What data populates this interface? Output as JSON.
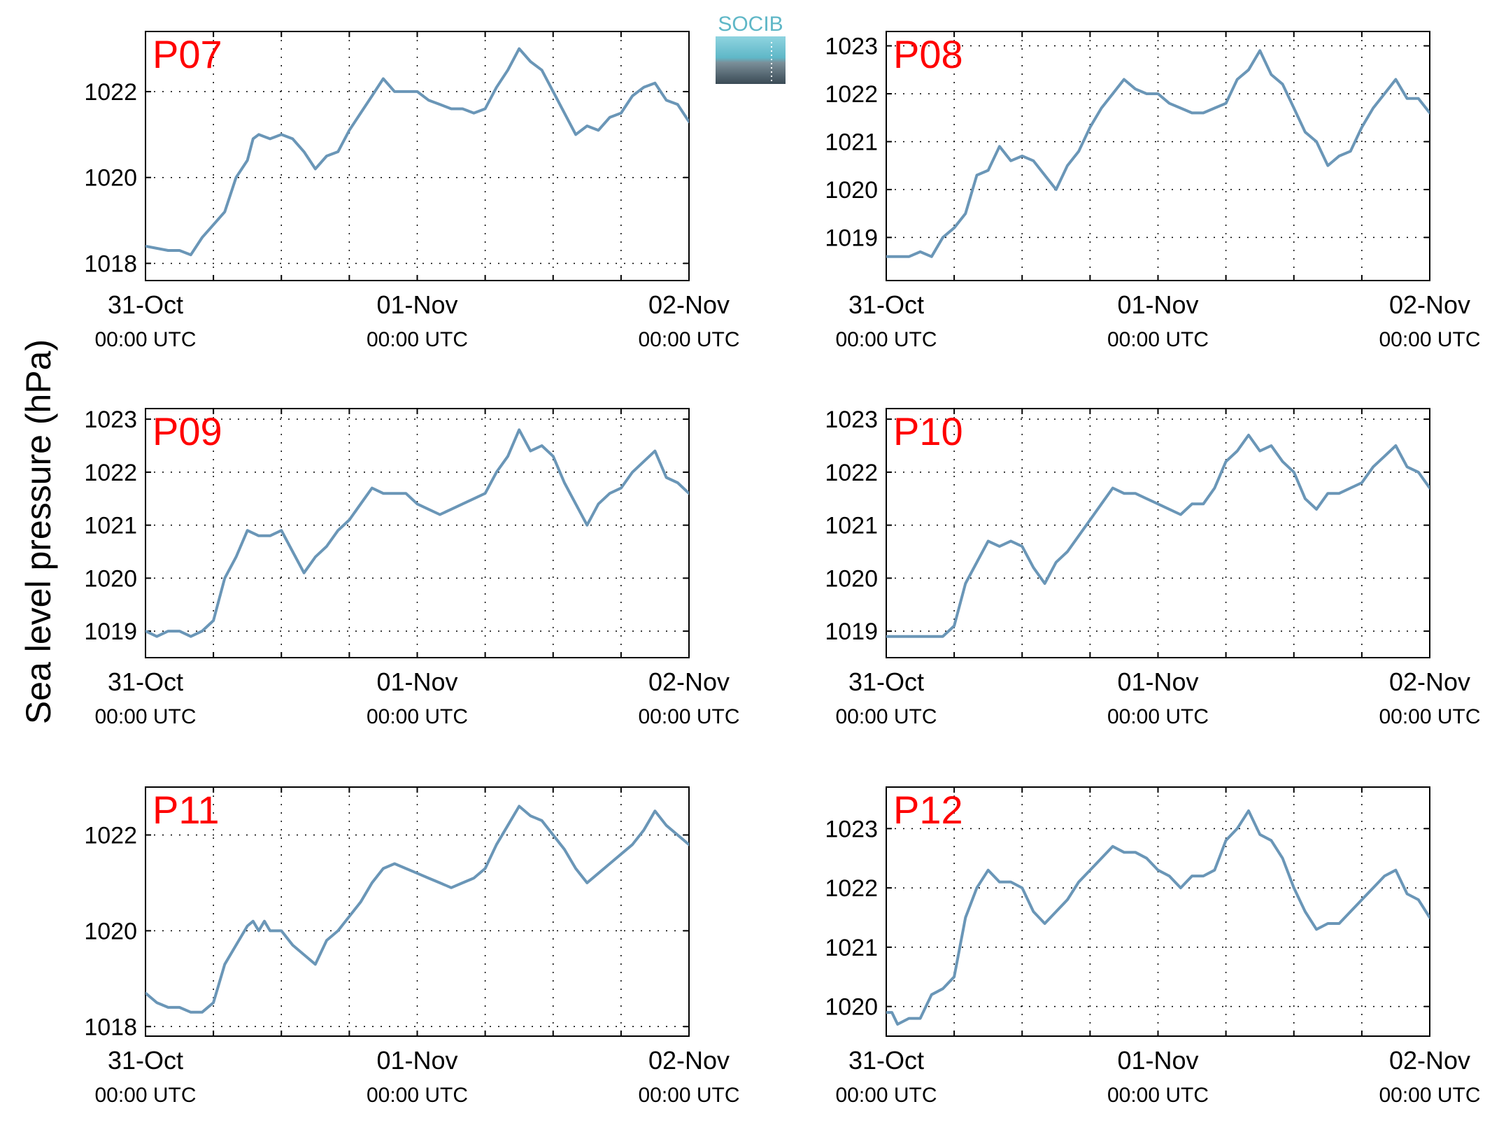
{
  "figure": {
    "ylabel": "Sea level pressure (hPa)",
    "logo_text": "SOCIB",
    "line_color": "#6a96b7",
    "station_label_color": "#ff0000",
    "time_unit_label": "00:00 UTC"
  },
  "chart_data": [
    {
      "type": "line",
      "station": "P07",
      "xlabels": [
        "31-Oct",
        "01-Nov",
        "02-Nov"
      ],
      "xsub": [
        "00:00 UTC",
        "00:00 UTC",
        "00:00 UTC"
      ],
      "x_hours": [
        0,
        24,
        48
      ],
      "xlim": [
        0,
        48
      ],
      "grid_hours": [
        6,
        12,
        18,
        24,
        30,
        36,
        42
      ],
      "ylim": [
        1017.6,
        1023.4
      ],
      "yticks": [
        1018,
        1020,
        1022
      ],
      "ytick_labels": [
        "1018",
        "1020",
        "1022"
      ],
      "grid": true,
      "series": [
        {
          "x": [
            0,
            2,
            3,
            4,
            5,
            6,
            7,
            8,
            9,
            9.5,
            10,
            11,
            12,
            13,
            14,
            15,
            16,
            17,
            18,
            19,
            20,
            21,
            22,
            23,
            24,
            25,
            26,
            27,
            28,
            29,
            30,
            31,
            32,
            33,
            34,
            35,
            36,
            37,
            38,
            39,
            40,
            41,
            42,
            43,
            44,
            45,
            46,
            47,
            48
          ],
          "y": [
            1018.4,
            1018.3,
            1018.3,
            1018.2,
            1018.6,
            1018.9,
            1019.2,
            1020.0,
            1020.4,
            1020.9,
            1021.0,
            1020.9,
            1021.0,
            1020.9,
            1020.6,
            1020.2,
            1020.5,
            1020.6,
            1021.1,
            1021.5,
            1021.9,
            1022.3,
            1022.0,
            1022.0,
            1022.0,
            1021.8,
            1021.7,
            1021.6,
            1021.6,
            1021.5,
            1021.6,
            1022.1,
            1022.5,
            1023.0,
            1022.7,
            1022.5,
            1022.0,
            1021.5,
            1021.0,
            1021.2,
            1021.1,
            1021.4,
            1021.5,
            1021.9,
            1022.1,
            1022.2,
            1021.8,
            1021.7,
            1021.3
          ]
        }
      ]
    },
    {
      "type": "line",
      "station": "P08",
      "xlabels": [
        "31-Oct",
        "01-Nov",
        "02-Nov"
      ],
      "xsub": [
        "00:00 UTC",
        "00:00 UTC",
        "00:00 UTC"
      ],
      "x_hours": [
        0,
        24,
        48
      ],
      "xlim": [
        0,
        48
      ],
      "grid_hours": [
        6,
        12,
        18,
        24,
        30,
        36,
        42
      ],
      "ylim": [
        1018.1,
        1023.3
      ],
      "yticks": [
        1019,
        1020,
        1021,
        1022,
        1023
      ],
      "ytick_labels": [
        "1019",
        "1020",
        "1021",
        "1022",
        "1023"
      ],
      "grid": true,
      "series": [
        {
          "x": [
            0,
            1,
            2,
            3,
            4,
            5,
            6,
            7,
            8,
            9,
            10,
            11,
            12,
            13,
            14,
            15,
            16,
            17,
            18,
            19,
            20,
            21,
            22,
            23,
            24,
            25,
            26,
            27,
            28,
            29,
            30,
            31,
            32,
            33,
            34,
            35,
            36,
            37,
            38,
            39,
            40,
            41,
            42,
            43,
            44,
            45,
            46,
            47,
            48
          ],
          "y": [
            1018.6,
            1018.6,
            1018.6,
            1018.7,
            1018.6,
            1019.0,
            1019.2,
            1019.5,
            1020.3,
            1020.4,
            1020.9,
            1020.6,
            1020.7,
            1020.6,
            1020.3,
            1020.0,
            1020.5,
            1020.8,
            1021.3,
            1021.7,
            1022.0,
            1022.3,
            1022.1,
            1022.0,
            1022.0,
            1021.8,
            1021.7,
            1021.6,
            1021.6,
            1021.7,
            1021.8,
            1022.3,
            1022.5,
            1022.9,
            1022.4,
            1022.2,
            1021.7,
            1021.2,
            1021.0,
            1020.5,
            1020.7,
            1020.8,
            1021.3,
            1021.7,
            1022.0,
            1022.3,
            1021.9,
            1021.9,
            1021.6
          ]
        }
      ]
    },
    {
      "type": "line",
      "station": "P09",
      "xlabels": [
        "31-Oct",
        "01-Nov",
        "02-Nov"
      ],
      "xsub": [
        "00:00 UTC",
        "00:00 UTC",
        "00:00 UTC"
      ],
      "x_hours": [
        0,
        24,
        48
      ],
      "xlim": [
        0,
        48
      ],
      "grid_hours": [
        6,
        12,
        18,
        24,
        30,
        36,
        42
      ],
      "ylim": [
        1018.5,
        1023.2
      ],
      "yticks": [
        1019,
        1020,
        1021,
        1022,
        1023
      ],
      "ytick_labels": [
        "1019",
        "1020",
        "1021",
        "1022",
        "1023"
      ],
      "grid": true,
      "series": [
        {
          "x": [
            0,
            1,
            2,
            3,
            4,
            5,
            6,
            7,
            8,
            9,
            10,
            11,
            12,
            13,
            14,
            15,
            16,
            17,
            18,
            19,
            20,
            21,
            22,
            23,
            24,
            25,
            26,
            27,
            28,
            29,
            30,
            31,
            32,
            33,
            34,
            35,
            36,
            37,
            38,
            39,
            40,
            41,
            42,
            43,
            44,
            45,
            46,
            47,
            48
          ],
          "y": [
            1019.0,
            1018.9,
            1019.0,
            1019.0,
            1018.9,
            1019.0,
            1019.2,
            1020.0,
            1020.4,
            1020.9,
            1020.8,
            1020.8,
            1020.9,
            1020.5,
            1020.1,
            1020.4,
            1020.6,
            1020.9,
            1021.1,
            1021.4,
            1021.7,
            1021.6,
            1021.6,
            1021.6,
            1021.4,
            1021.3,
            1021.2,
            1021.3,
            1021.4,
            1021.5,
            1021.6,
            1022.0,
            1022.3,
            1022.8,
            1022.4,
            1022.5,
            1022.3,
            1021.8,
            1021.4,
            1021.0,
            1021.4,
            1021.6,
            1021.7,
            1022.0,
            1022.2,
            1022.4,
            1021.9,
            1021.8,
            1021.6
          ]
        }
      ]
    },
    {
      "type": "line",
      "station": "P10",
      "xlabels": [
        "31-Oct",
        "01-Nov",
        "02-Nov"
      ],
      "xsub": [
        "00:00 UTC",
        "00:00 UTC",
        "00:00 UTC"
      ],
      "x_hours": [
        0,
        24,
        48
      ],
      "xlim": [
        0,
        48
      ],
      "grid_hours": [
        6,
        12,
        18,
        24,
        30,
        36,
        42
      ],
      "ylim": [
        1018.5,
        1023.2
      ],
      "yticks": [
        1019,
        1020,
        1021,
        1022,
        1023
      ],
      "ytick_labels": [
        "1019",
        "1020",
        "1021",
        "1022",
        "1023"
      ],
      "grid": true,
      "series": [
        {
          "x": [
            0,
            1,
            2,
            3,
            4,
            5,
            6,
            7,
            8,
            9,
            10,
            11,
            12,
            13,
            14,
            15,
            16,
            17,
            18,
            19,
            20,
            21,
            22,
            23,
            24,
            25,
            26,
            27,
            28,
            29,
            30,
            31,
            32,
            33,
            34,
            35,
            36,
            37,
            38,
            39,
            40,
            41,
            42,
            43,
            44,
            45,
            46,
            47,
            48
          ],
          "y": [
            1018.9,
            1018.9,
            1018.9,
            1018.9,
            1018.9,
            1018.9,
            1019.1,
            1019.9,
            1020.3,
            1020.7,
            1020.6,
            1020.7,
            1020.6,
            1020.2,
            1019.9,
            1020.3,
            1020.5,
            1020.8,
            1021.1,
            1021.4,
            1021.7,
            1021.6,
            1021.6,
            1021.5,
            1021.4,
            1021.3,
            1021.2,
            1021.4,
            1021.4,
            1021.7,
            1022.2,
            1022.4,
            1022.7,
            1022.4,
            1022.5,
            1022.2,
            1022.0,
            1021.5,
            1021.3,
            1021.6,
            1021.6,
            1021.7,
            1021.8,
            1022.1,
            1022.3,
            1022.5,
            1022.1,
            1022.0,
            1021.7
          ]
        }
      ]
    },
    {
      "type": "line",
      "station": "P11",
      "xlabels": [
        "31-Oct",
        "01-Nov",
        "02-Nov"
      ],
      "xsub": [
        "00:00 UTC",
        "00:00 UTC",
        "00:00 UTC"
      ],
      "x_hours": [
        0,
        24,
        48
      ],
      "xlim": [
        0,
        48
      ],
      "grid_hours": [
        6,
        12,
        18,
        24,
        30,
        36,
        42
      ],
      "ylim": [
        1017.8,
        1023.0
      ],
      "yticks": [
        1018,
        1020,
        1022
      ],
      "ytick_labels": [
        "1018",
        "1020",
        "1022"
      ],
      "grid": true,
      "series": [
        {
          "x": [
            0,
            1,
            2,
            3,
            4,
            5,
            6,
            7,
            8,
            9,
            9.5,
            10,
            10.5,
            11,
            12,
            13,
            14,
            15,
            16,
            17,
            18,
            19,
            20,
            21,
            22,
            23,
            24,
            25,
            26,
            27,
            28,
            29,
            30,
            31,
            32,
            33,
            34,
            35,
            36,
            37,
            38,
            39,
            40,
            41,
            42,
            43,
            44,
            45,
            46,
            47,
            48
          ],
          "y": [
            1018.7,
            1018.5,
            1018.4,
            1018.4,
            1018.3,
            1018.3,
            1018.5,
            1019.3,
            1019.7,
            1020.1,
            1020.2,
            1020.0,
            1020.2,
            1020.0,
            1020.0,
            1019.7,
            1019.5,
            1019.3,
            1019.8,
            1020.0,
            1020.3,
            1020.6,
            1021.0,
            1021.3,
            1021.4,
            1021.3,
            1021.2,
            1021.1,
            1021.0,
            1020.9,
            1021.0,
            1021.1,
            1021.3,
            1021.8,
            1022.2,
            1022.6,
            1022.4,
            1022.3,
            1022.0,
            1021.7,
            1021.3,
            1021.0,
            1021.2,
            1021.4,
            1021.6,
            1021.8,
            1022.1,
            1022.5,
            1022.2,
            1022.0,
            1021.8
          ]
        }
      ]
    },
    {
      "type": "line",
      "station": "P12",
      "xlabels": [
        "31-Oct",
        "01-Nov",
        "02-Nov"
      ],
      "xsub": [
        "00:00 UTC",
        "00:00 UTC",
        "00:00 UTC"
      ],
      "x_hours": [
        0,
        24,
        48
      ],
      "xlim": [
        0,
        48
      ],
      "grid_hours": [
        6,
        12,
        18,
        24,
        30,
        36,
        42
      ],
      "ylim": [
        1019.5,
        1023.7
      ],
      "yticks": [
        1020,
        1021,
        1022,
        1023
      ],
      "ytick_labels": [
        "1020",
        "1021",
        "1022",
        "1023"
      ],
      "grid": true,
      "series": [
        {
          "x": [
            0,
            0.5,
            1,
            2,
            3,
            4,
            5,
            6,
            7,
            8,
            9,
            10,
            11,
            12,
            13,
            14,
            15,
            16,
            17,
            18,
            19,
            20,
            21,
            22,
            23,
            24,
            25,
            26,
            27,
            28,
            29,
            30,
            31,
            32,
            33,
            34,
            35,
            36,
            37,
            38,
            39,
            40,
            41,
            42,
            43,
            44,
            45,
            46,
            47,
            48
          ],
          "y": [
            1019.9,
            1019.9,
            1019.7,
            1019.8,
            1019.8,
            1020.2,
            1020.3,
            1020.5,
            1021.5,
            1022.0,
            1022.3,
            1022.1,
            1022.1,
            1022.0,
            1021.6,
            1021.4,
            1021.6,
            1021.8,
            1022.1,
            1022.3,
            1022.5,
            1022.7,
            1022.6,
            1022.6,
            1022.5,
            1022.3,
            1022.2,
            1022.0,
            1022.2,
            1022.2,
            1022.3,
            1022.8,
            1023.0,
            1023.3,
            1022.9,
            1022.8,
            1022.5,
            1022.0,
            1021.6,
            1021.3,
            1021.4,
            1021.4,
            1021.6,
            1021.8,
            1022.0,
            1022.2,
            1022.3,
            1021.9,
            1021.8,
            1021.5
          ]
        }
      ]
    }
  ]
}
